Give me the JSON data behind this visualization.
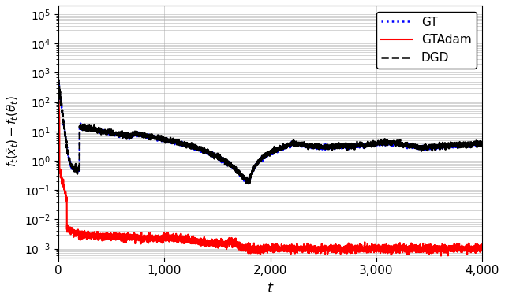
{
  "title": "",
  "xlabel": "$t$",
  "ylabel": "$f_t(\\bar{x}_t) - f_t(\\theta_t)$",
  "xlim": [
    0,
    4000
  ],
  "ylim_log": [
    -3.3,
    5.3
  ],
  "xticks": [
    0,
    1000,
    2000,
    3000,
    4000
  ],
  "xticklabels": [
    "0",
    "1,000",
    "2,000",
    "3,000",
    "4,000"
  ],
  "legend_labels": [
    "GT",
    "GTAdam",
    "DGD"
  ],
  "gt_color": "#0000ff",
  "gtadam_color": "#ff0000",
  "dgd_color": "#000000",
  "figsize": [
    6.4,
    3.82
  ],
  "dpi": 100
}
